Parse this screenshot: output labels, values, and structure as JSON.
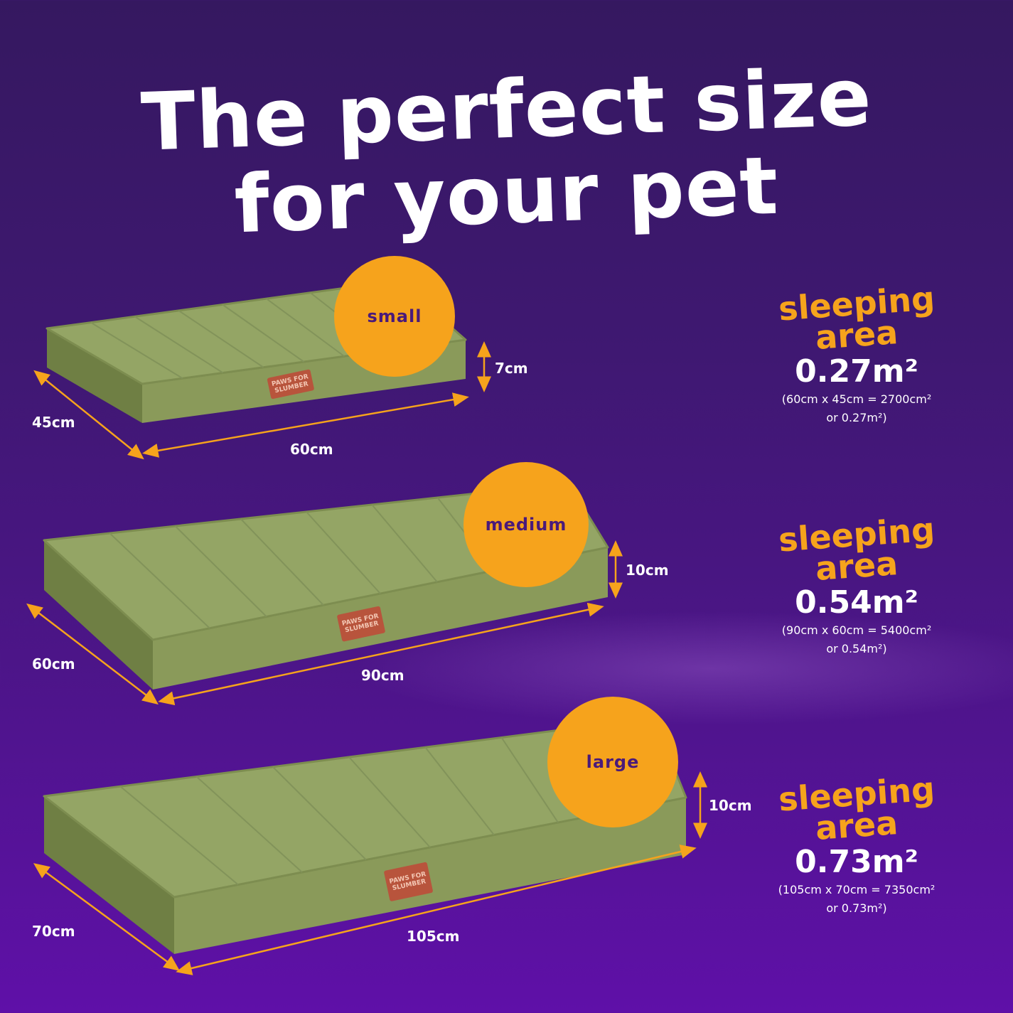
{
  "title": {
    "line1": "The perfect size",
    "line2": "for your pet"
  },
  "colors": {
    "accent": "#f6a31c",
    "bed": "#8a9a5a",
    "background": "#4a1580"
  },
  "sizes": [
    {
      "label": "small",
      "width": "60cm",
      "depth": "45cm",
      "height": "7cm",
      "sleeping": "sleeping",
      "area": "area",
      "value": "0.27m²",
      "calc": "(60cm x 45cm = 2700cm²",
      "calc2": "or 0.27m²)"
    },
    {
      "label": "medium",
      "width": "90cm",
      "depth": "60cm",
      "height": "10cm",
      "sleeping": "sleeping",
      "area": "area",
      "value": "0.54m²",
      "calc": "(90cm x 60cm = 5400cm²",
      "calc2": "or 0.54m²)"
    },
    {
      "label": "large",
      "width": "105cm",
      "depth": "70cm",
      "height": "10cm",
      "sleeping": "sleeping",
      "area": "area",
      "value": "0.73m²",
      "calc": "(105cm x 70cm = 7350cm²",
      "calc2": "or 0.73m²)"
    }
  ],
  "brand_label": "PAWS FOR SLUMBER"
}
